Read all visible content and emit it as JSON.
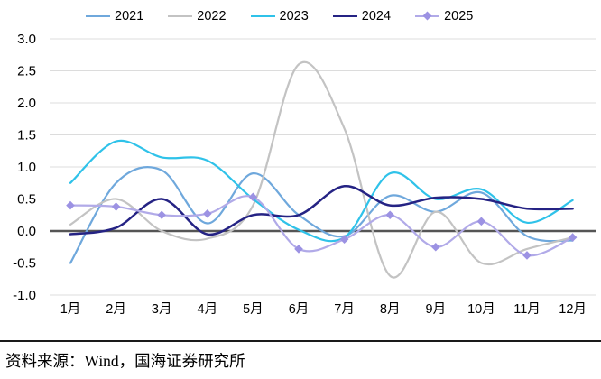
{
  "chart_data": {
    "type": "line",
    "title": "",
    "categories": [
      "1月",
      "2月",
      "3月",
      "4月",
      "5月",
      "6月",
      "7月",
      "8月",
      "9月",
      "10月",
      "11月",
      "12月"
    ],
    "y_ticks": [
      "3.0",
      "2.5",
      "2.0",
      "1.5",
      "1.0",
      "0.5",
      "0.0",
      "-0.5",
      "-1.0"
    ],
    "ylim": [
      -1.0,
      3.0
    ],
    "grid": true,
    "legend_position": "top",
    "series": [
      {
        "name": "2021",
        "color": "#6FA8DC",
        "marker": "none",
        "values": [
          -0.5,
          0.75,
          0.95,
          0.12,
          0.9,
          0.25,
          -0.08,
          0.55,
          0.3,
          0.6,
          -0.08,
          -0.15
        ]
      },
      {
        "name": "2022",
        "color": "#C3C3C3",
        "marker": "none",
        "values": [
          0.1,
          0.5,
          0.0,
          -0.12,
          0.4,
          2.6,
          1.6,
          -0.7,
          0.3,
          -0.5,
          -0.28,
          -0.1
        ]
      },
      {
        "name": "2023",
        "color": "#2FC2E9",
        "marker": "none",
        "values": [
          0.75,
          1.4,
          1.15,
          1.1,
          0.5,
          0.02,
          -0.1,
          0.9,
          0.5,
          0.65,
          0.13,
          0.48
        ]
      },
      {
        "name": "2024",
        "color": "#252384",
        "marker": "none",
        "values": [
          -0.05,
          0.05,
          0.5,
          -0.05,
          0.25,
          0.25,
          0.7,
          0.4,
          0.52,
          0.5,
          0.35,
          0.35
        ]
      },
      {
        "name": "2025",
        "color": "#B1AAE8",
        "marker": "diamond",
        "marker_color": "#9C92E3",
        "values": [
          0.4,
          0.38,
          0.25,
          0.27,
          0.53,
          -0.28,
          -0.13,
          0.25,
          -0.25,
          0.15,
          -0.38,
          -0.1
        ]
      }
    ]
  },
  "footer": {
    "source_label": "资料来源：Wind，国海证券研究所"
  },
  "colors": {
    "background": "#FFFFFF",
    "gridline": "#DCDCDC",
    "zero_line": "#555555",
    "text": "#000000"
  }
}
